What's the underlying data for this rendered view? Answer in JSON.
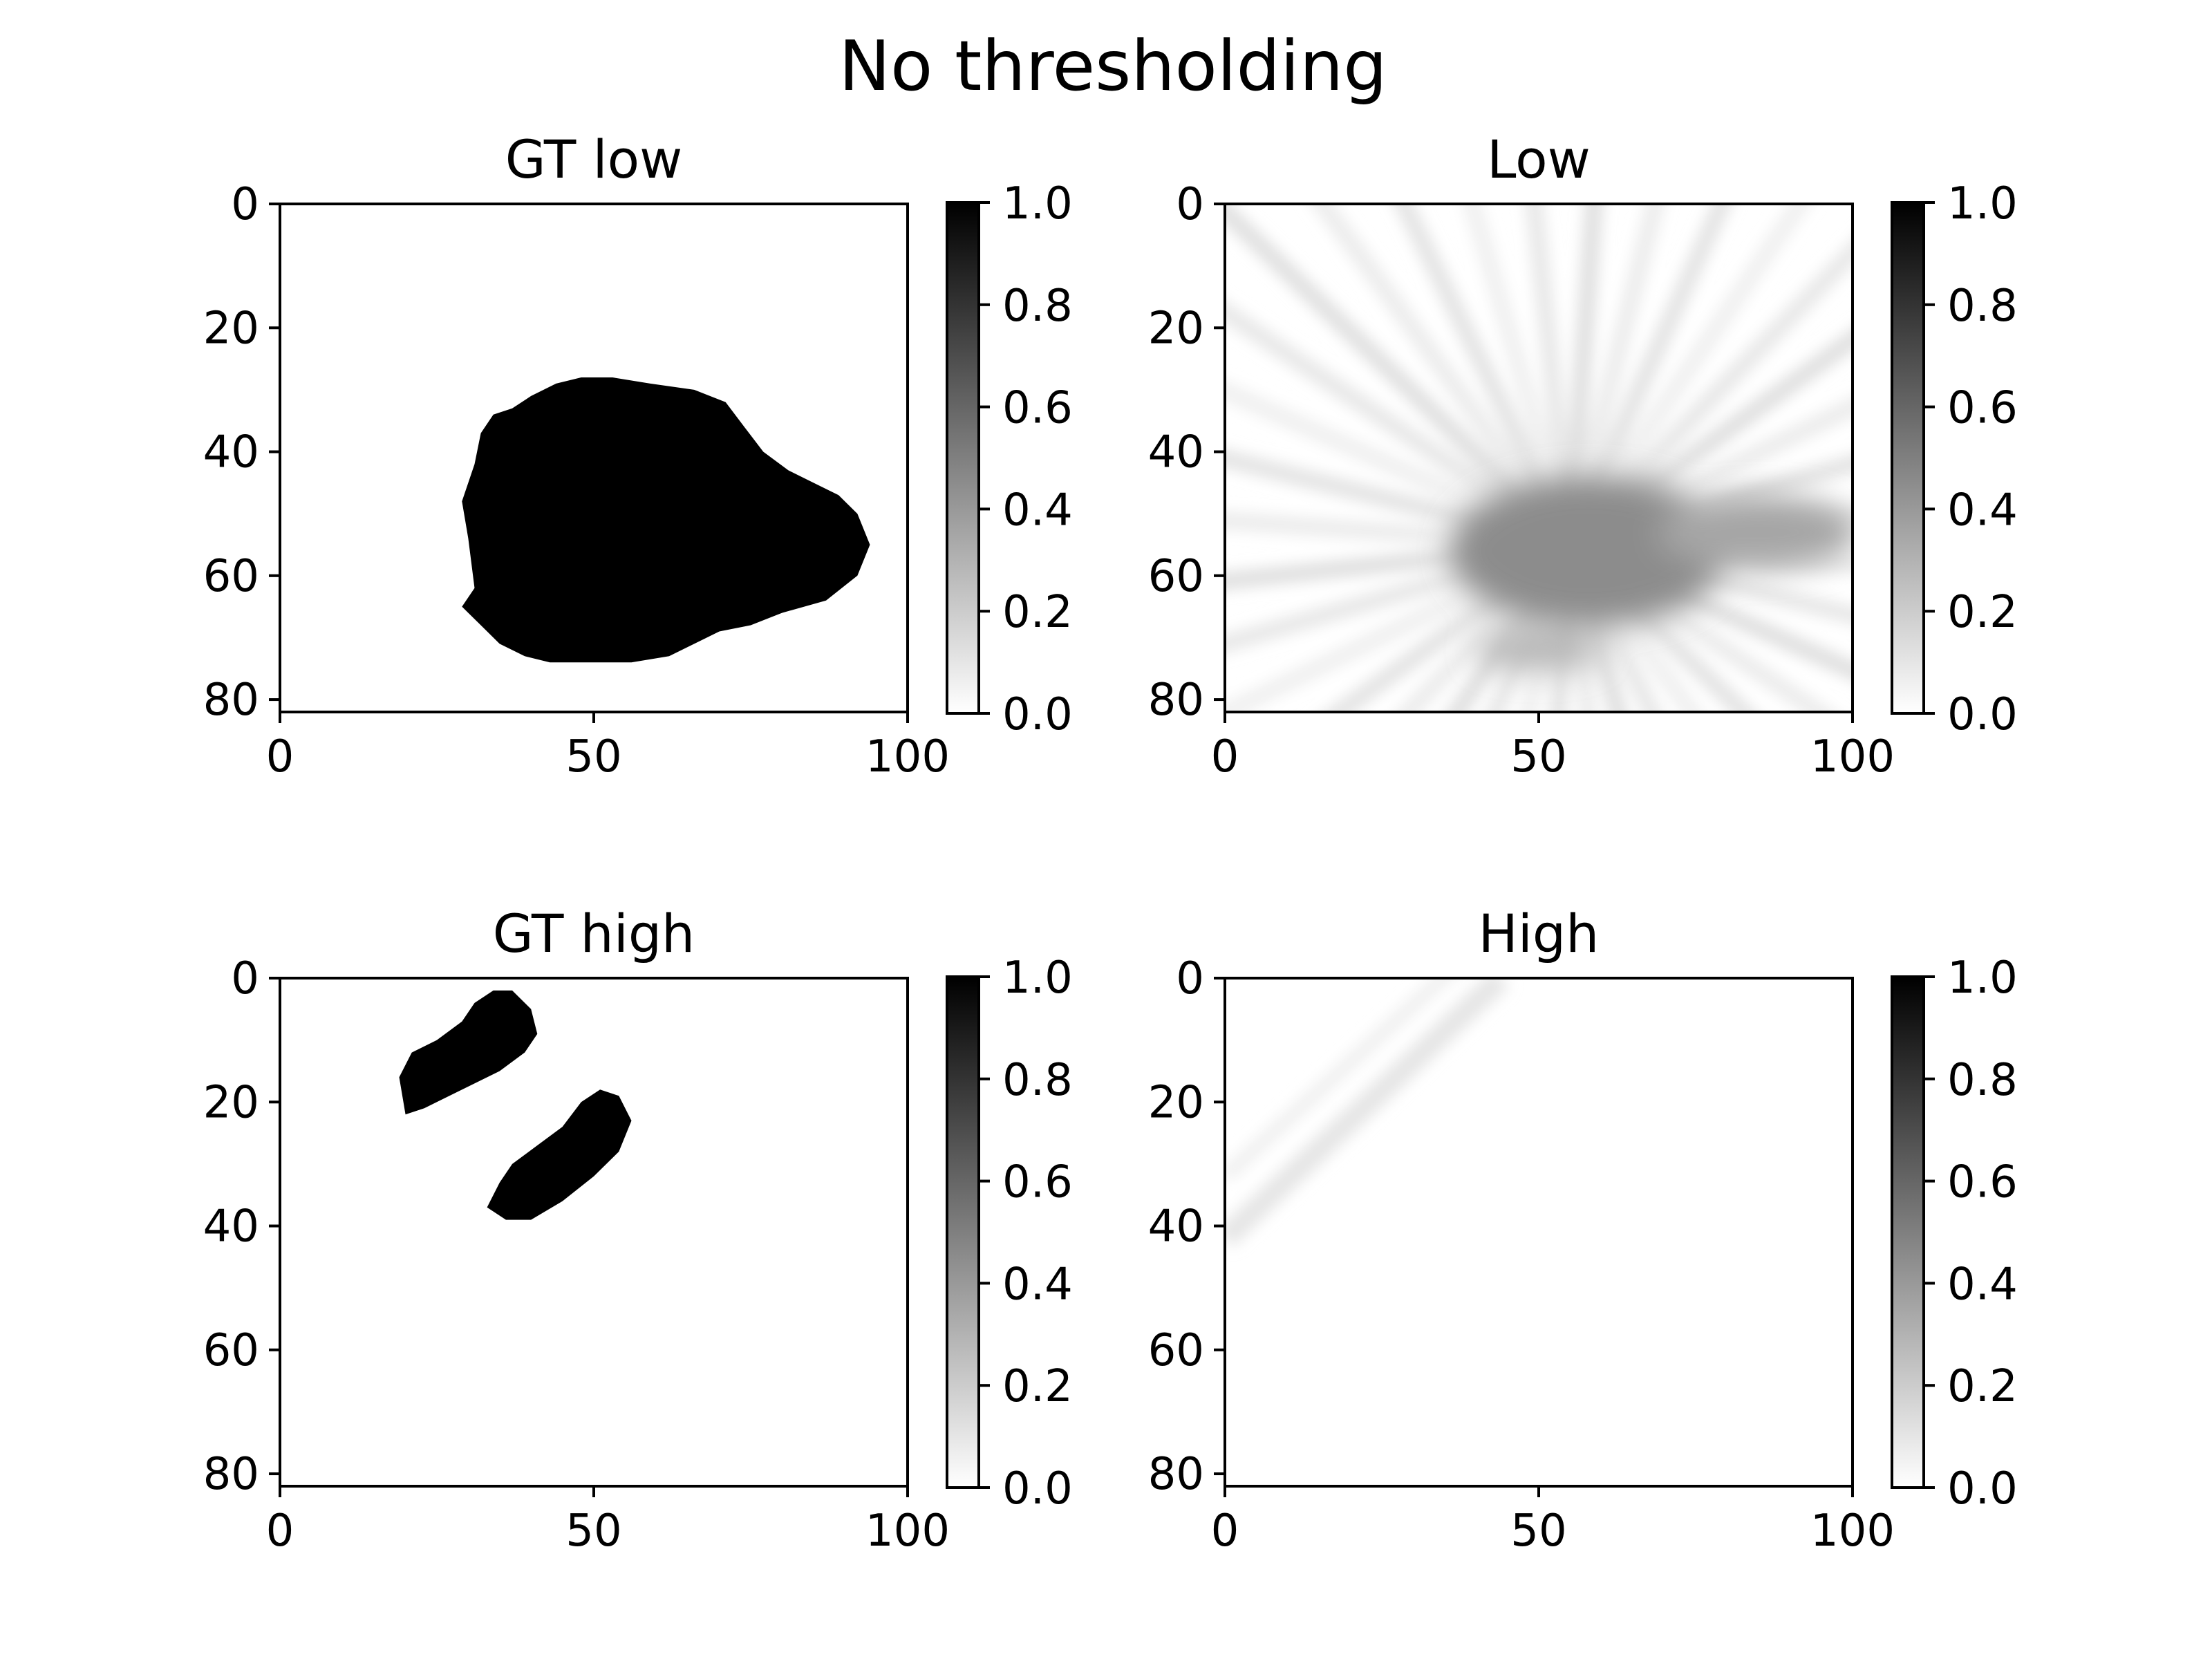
{
  "figure": {
    "title": "No thresholding"
  },
  "chart_data": [
    {
      "type": "heatmap",
      "title": "GT low",
      "xlim": [
        0,
        100
      ],
      "ylim": [
        82,
        0
      ],
      "xticks": [
        "0",
        "50",
        "100"
      ],
      "yticks": [
        "0",
        "20",
        "40",
        "60",
        "80"
      ],
      "colorbar": {
        "range": [
          0,
          1
        ],
        "ticks": [
          "0.0",
          "0.2",
          "0.4",
          "0.6",
          "0.8",
          "1.0"
        ],
        "colormap": "gray_r"
      },
      "content": "binary mask, single region",
      "regions": [
        {
          "polygon": [
            [
              29,
              65
            ],
            [
              31,
              62
            ],
            [
              30,
              54
            ],
            [
              29,
              48
            ],
            [
              31,
              42
            ],
            [
              32,
              37
            ],
            [
              34,
              34
            ],
            [
              37,
              33
            ],
            [
              40,
              31
            ],
            [
              44,
              29
            ],
            [
              48,
              28
            ],
            [
              53,
              28
            ],
            [
              59,
              29
            ],
            [
              66,
              30
            ],
            [
              71,
              32
            ],
            [
              74,
              36
            ],
            [
              77,
              40
            ],
            [
              81,
              43
            ],
            [
              85,
              45
            ],
            [
              89,
              47
            ],
            [
              92,
              50
            ],
            [
              94,
              55
            ],
            [
              92,
              60
            ],
            [
              87,
              64
            ],
            [
              80,
              66
            ],
            [
              75,
              68
            ],
            [
              70,
              69
            ],
            [
              66,
              71
            ],
            [
              62,
              73
            ],
            [
              56,
              74
            ],
            [
              49,
              74
            ],
            [
              43,
              74
            ],
            [
              39,
              73
            ],
            [
              35,
              71
            ],
            [
              32,
              68
            ],
            [
              30,
              66
            ]
          ]
        }
      ]
    },
    {
      "type": "heatmap",
      "title": "Low",
      "xlim": [
        0,
        100
      ],
      "ylim": [
        82,
        0
      ],
      "xticks": [
        "0",
        "50",
        "100"
      ],
      "yticks": [
        "0",
        "20",
        "40",
        "60",
        "80"
      ],
      "colorbar": {
        "range": [
          0,
          1
        ],
        "ticks": [
          "0.0",
          "0.2",
          "0.4",
          "0.6",
          "0.8",
          "1.0"
        ],
        "colormap": "gray_r"
      },
      "content": "diffuse prediction with streak artifacts",
      "blobs": [
        {
          "cx": 58,
          "cy": 56,
          "rx": 22,
          "ry": 12,
          "value": 0.45
        },
        {
          "cx": 85,
          "cy": 53,
          "rx": 16,
          "ry": 6,
          "value": 0.35
        },
        {
          "cx": 50,
          "cy": 72,
          "rx": 10,
          "ry": 3,
          "value": 0.3
        }
      ],
      "streaks_center": [
        55,
        55
      ],
      "streak_value": 0.12
    },
    {
      "type": "heatmap",
      "title": "GT high",
      "xlim": [
        0,
        100
      ],
      "ylim": [
        82,
        0
      ],
      "xticks": [
        "0",
        "50",
        "100"
      ],
      "yticks": [
        "0",
        "20",
        "40",
        "60",
        "80"
      ],
      "colorbar": {
        "range": [
          0,
          1
        ],
        "ticks": [
          "0.0",
          "0.2",
          "0.4",
          "0.6",
          "0.8",
          "1.0"
        ],
        "colormap": "gray_r"
      },
      "content": "binary mask, two regions",
      "regions": [
        {
          "polygon": [
            [
              20,
              22
            ],
            [
              19,
              16
            ],
            [
              21,
              12
            ],
            [
              25,
              10
            ],
            [
              29,
              7
            ],
            [
              31,
              4
            ],
            [
              34,
              2
            ],
            [
              37,
              2
            ],
            [
              40,
              5
            ],
            [
              41,
              9
            ],
            [
              39,
              12
            ],
            [
              35,
              15
            ],
            [
              31,
              17
            ],
            [
              27,
              19
            ],
            [
              23,
              21
            ]
          ]
        },
        {
          "polygon": [
            [
              33,
              37
            ],
            [
              35,
              33
            ],
            [
              37,
              30
            ],
            [
              41,
              27
            ],
            [
              45,
              24
            ],
            [
              48,
              20
            ],
            [
              51,
              18
            ],
            [
              54,
              19
            ],
            [
              56,
              23
            ],
            [
              54,
              28
            ],
            [
              50,
              32
            ],
            [
              45,
              36
            ],
            [
              40,
              39
            ],
            [
              36,
              39
            ]
          ]
        }
      ]
    },
    {
      "type": "heatmap",
      "title": "High",
      "xlim": [
        0,
        100
      ],
      "ylim": [
        82,
        0
      ],
      "xticks": [
        "0",
        "50",
        "100"
      ],
      "yticks": [
        "0",
        "20",
        "40",
        "60",
        "80"
      ],
      "colorbar": {
        "range": [
          0,
          1
        ],
        "ticks": [
          "0.0",
          "0.2",
          "0.4",
          "0.6",
          "0.8",
          "1.0"
        ],
        "colormap": "gray_r"
      },
      "content": "faint diagonal band",
      "bands": [
        {
          "from": [
            0,
            42
          ],
          "to": [
            44,
            0
          ],
          "value": 0.1
        }
      ]
    }
  ]
}
